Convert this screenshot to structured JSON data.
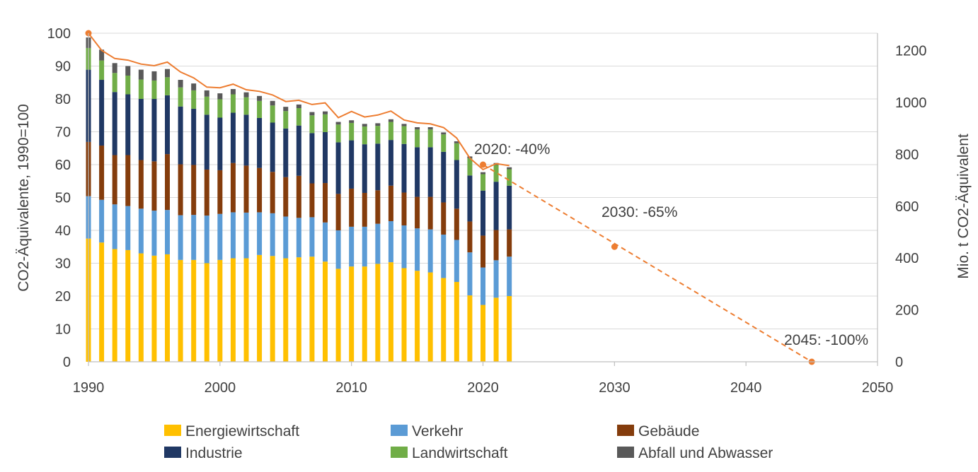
{
  "chart_data": {
    "type": "bar",
    "subtype": "stacked-bar-with-line",
    "x_axis": {
      "min": 1990,
      "max": 2050,
      "ticks": [
        "1990",
        "2000",
        "2010",
        "2020",
        "2030",
        "2040",
        "2050"
      ]
    },
    "y_axis_left": {
      "label": "CO2-Äquivalente, 1990=100",
      "min": 0,
      "max": 100,
      "ticks": [
        "0",
        "10",
        "20",
        "30",
        "40",
        "50",
        "60",
        "70",
        "80",
        "90",
        "100"
      ]
    },
    "y_axis_right": {
      "label": "Mio. t CO2-Äquivalent",
      "min": 0,
      "max": 1267,
      "ticks": [
        "0",
        "200",
        "400",
        "600",
        "800",
        "1000",
        "1200"
      ]
    },
    "grid": true,
    "legend_position": "bottom",
    "categories": [
      "1990",
      "1991",
      "1992",
      "1993",
      "1994",
      "1995",
      "1996",
      "1997",
      "1998",
      "1999",
      "2000",
      "2001",
      "2002",
      "2003",
      "2004",
      "2005",
      "2006",
      "2007",
      "2008",
      "2009",
      "2010",
      "2011",
      "2012",
      "2013",
      "2014",
      "2015",
      "2016",
      "2017",
      "2018",
      "2019",
      "2020",
      "2021",
      "2022"
    ],
    "series": [
      {
        "name": "Energiewirtschaft",
        "color": "#FFC000",
        "values": [
          37.5,
          36.3,
          34.3,
          34.0,
          33.0,
          32.3,
          32.7,
          31.0,
          31.0,
          30.0,
          31.0,
          31.5,
          31.5,
          32.5,
          32.2,
          31.5,
          31.8,
          32.0,
          30.5,
          28.3,
          29.0,
          29.0,
          29.8,
          30.3,
          28.5,
          27.7,
          27.2,
          25.5,
          24.3,
          20.2,
          17.3,
          19.5,
          20.0
        ]
      },
      {
        "name": "Verkehr",
        "color": "#5B9BD5",
        "values": [
          12.9,
          13.0,
          13.6,
          13.4,
          13.6,
          13.7,
          13.5,
          13.6,
          13.7,
          14.5,
          14.0,
          14.0,
          13.9,
          13.0,
          13.0,
          12.7,
          12.0,
          12.0,
          11.9,
          11.7,
          12.1,
          12.1,
          12.2,
          12.5,
          13.0,
          12.9,
          13.1,
          13.2,
          12.8,
          13.1,
          11.4,
          11.4,
          12.0
        ]
      },
      {
        "name": "Gebäude",
        "color": "#843C0C",
        "values": [
          16.5,
          16.5,
          15.0,
          15.5,
          14.8,
          15.0,
          17.0,
          15.5,
          15.2,
          14.0,
          13.3,
          15.0,
          14.3,
          13.5,
          12.6,
          12.0,
          12.8,
          10.3,
          12.0,
          11.1,
          11.6,
          10.3,
          10.2,
          10.8,
          10.0,
          9.6,
          9.9,
          9.8,
          9.5,
          9.4,
          9.7,
          9.2,
          8.3
        ]
      },
      {
        "name": "Industrie",
        "color": "#203864",
        "values": [
          22.0,
          20.0,
          19.2,
          18.5,
          18.6,
          19.0,
          17.9,
          17.6,
          17.1,
          16.7,
          16.0,
          15.3,
          15.5,
          15.2,
          15.0,
          14.8,
          15.3,
          15.3,
          15.5,
          15.7,
          14.7,
          14.8,
          14.2,
          13.9,
          14.8,
          15.1,
          15.1,
          15.4,
          14.8,
          14.0,
          13.7,
          14.7,
          13.3
        ]
      },
      {
        "name": "Landwirtschaft",
        "color": "#70AD47",
        "values": [
          6.6,
          5.9,
          5.8,
          5.7,
          5.9,
          5.6,
          5.5,
          5.8,
          5.6,
          5.5,
          5.6,
          5.6,
          5.3,
          5.2,
          5.2,
          5.3,
          5.3,
          5.4,
          5.4,
          5.4,
          5.3,
          5.4,
          5.4,
          5.5,
          5.4,
          5.4,
          5.4,
          5.3,
          5.1,
          5.2,
          5.0,
          5.1,
          5.0
        ]
      },
      {
        "name": "Abfall und Abwasser",
        "color": "#595959",
        "values": [
          3.2,
          3.3,
          3.0,
          2.9,
          3.0,
          2.8,
          2.5,
          2.3,
          2.1,
          1.9,
          1.8,
          1.6,
          1.5,
          1.5,
          1.4,
          1.3,
          1.1,
          1.0,
          0.9,
          0.8,
          0.8,
          0.8,
          0.8,
          0.8,
          0.7,
          0.7,
          0.7,
          0.6,
          0.6,
          0.6,
          0.6,
          0.6,
          0.6
        ]
      }
    ],
    "line_series": {
      "name": "",
      "color": "#ED7D31",
      "x": [
        1990,
        1991,
        1992,
        1993,
        1994,
        1995,
        1996,
        1997,
        1998,
        1999,
        2000,
        2001,
        2002,
        2003,
        2004,
        2005,
        2006,
        2007,
        2008,
        2009,
        2010,
        2011,
        2012,
        2013,
        2014,
        2015,
        2016,
        2017,
        2018,
        2019,
        2020,
        2021,
        2022
      ],
      "values": [
        100,
        94.8,
        92.3,
        91.8,
        90.6,
        90.1,
        91.2,
        88.2,
        86.4,
        83.6,
        83.4,
        84.5,
        82.8,
        82.3,
        81.2,
        79.2,
        79.6,
        78.3,
        78.8,
        74.3,
        76.2,
        74.5,
        75.1,
        76.3,
        73.6,
        72.7,
        72.4,
        71.3,
        68.1,
        62.0,
        58.5,
        60.3,
        59.7
      ]
    },
    "target_series": {
      "x": [
        1990,
        2020,
        2030,
        2045
      ],
      "values": [
        100,
        60,
        35,
        0
      ],
      "labels": [
        "",
        "2020: -40%",
        "2030: -65%",
        "2045: -100%"
      ]
    }
  }
}
